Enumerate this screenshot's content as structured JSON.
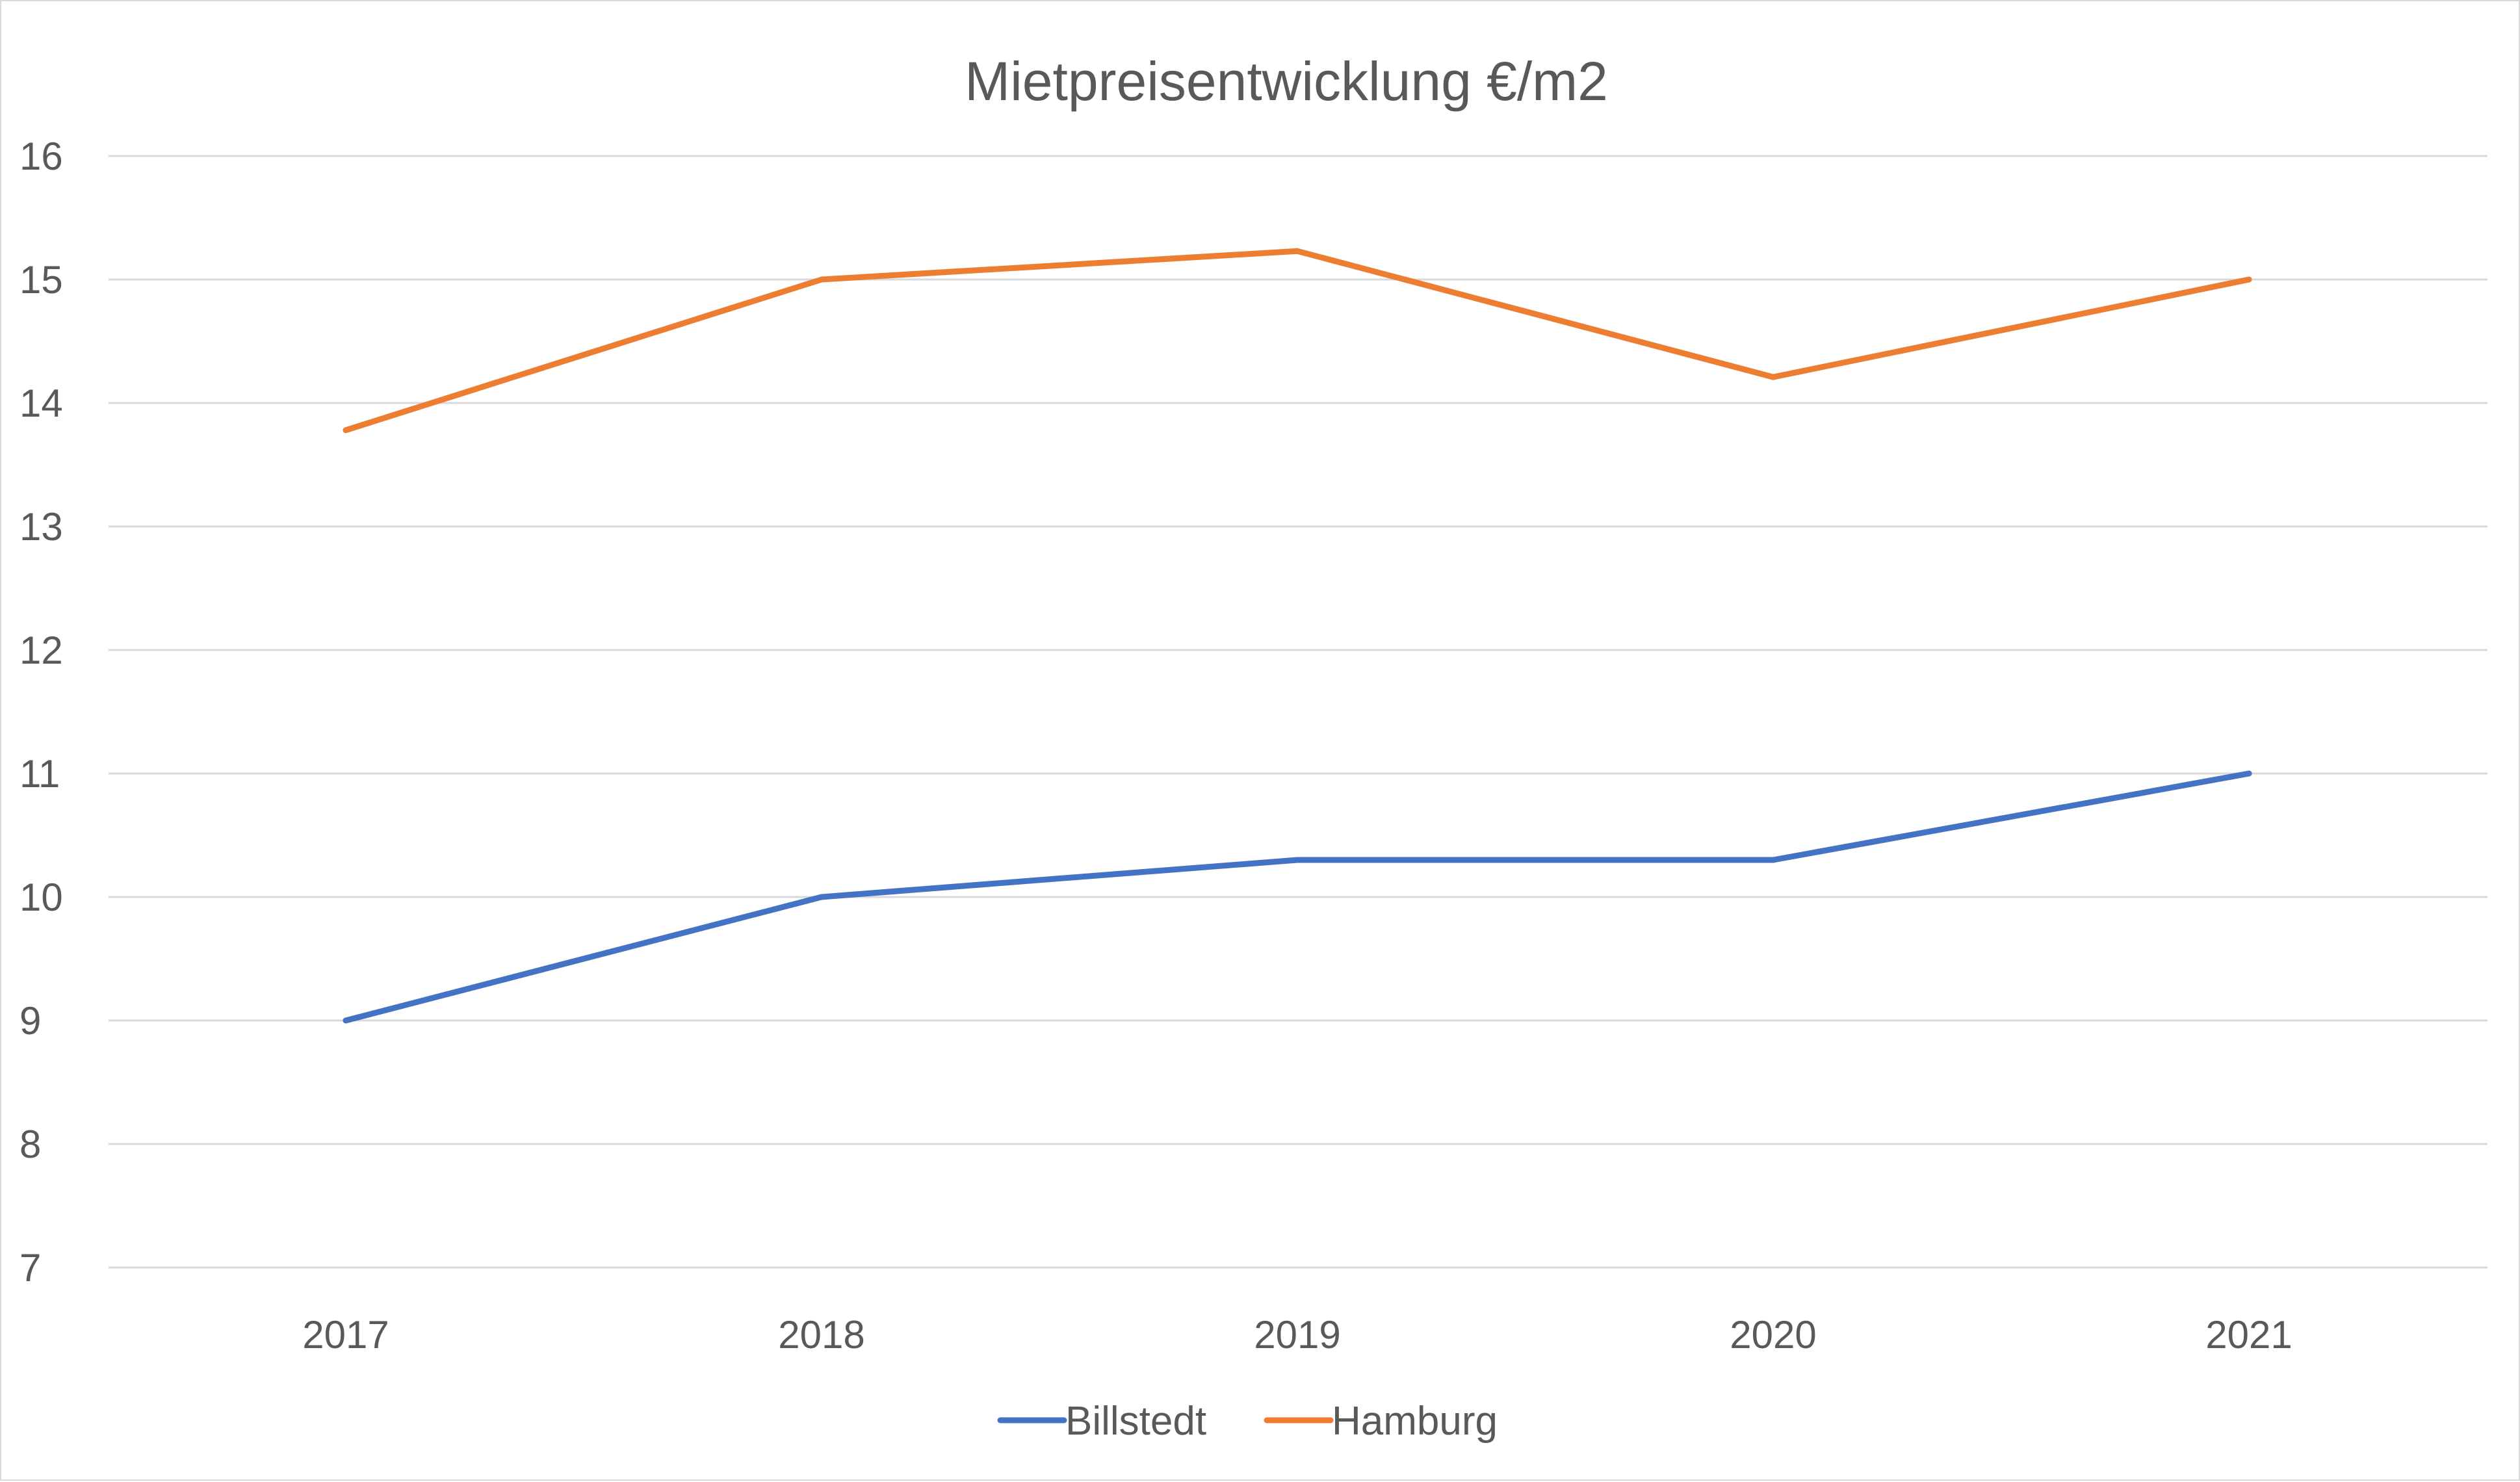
{
  "chart_data": {
    "type": "line",
    "title": "Mietpreisentwicklung  €/m2",
    "xlabel": "",
    "ylabel": "",
    "categories": [
      "2017",
      "2018",
      "2019",
      "2020",
      "2021"
    ],
    "ylim": [
      7,
      16
    ],
    "yticks": [
      7,
      8,
      9,
      10,
      11,
      12,
      13,
      14,
      15,
      16
    ],
    "grid": true,
    "legend_position": "bottom",
    "series": [
      {
        "name": "Billstedt",
        "color": "#4472c4",
        "values": [
          9.0,
          10.0,
          10.3,
          10.3,
          11.0
        ]
      },
      {
        "name": "Hamburg",
        "color": "#ed7d31",
        "values": [
          13.78,
          15.0,
          15.23,
          14.21,
          15.0
        ]
      }
    ]
  }
}
